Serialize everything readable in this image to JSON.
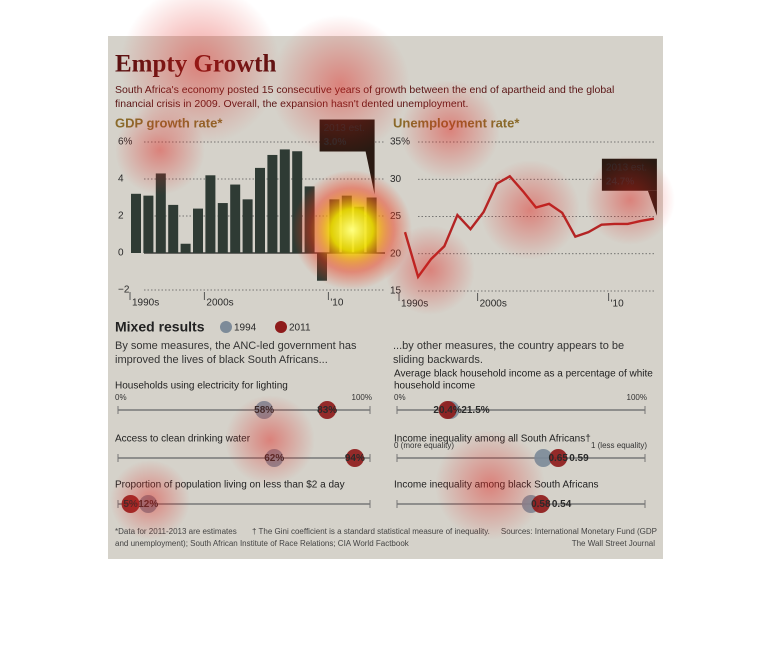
{
  "title": "Empty Growth",
  "subtitle": [
    "South Africa's economy posted 15 consecutive years of growth between the end of apartheid and the global",
    "financial crisis in 2009. Overall, the expansion hasn't dented unemployment."
  ],
  "mixed_results": {
    "title": "Mixed results",
    "legend": [
      {
        "name": "1994",
        "color": "#7d8b99"
      },
      {
        "name": "2011",
        "color": "#8e1b1b"
      }
    ],
    "left_intro": [
      "By some measures, the ANC-led government has",
      "improved the lives of black South Africans..."
    ],
    "right_intro": [
      "...by other measures, the country appears to be",
      "sliding backwards."
    ]
  },
  "chart_data": [
    {
      "type": "bar",
      "title": "GDP growth rate*",
      "color": "#2f3b34",
      "categories": [
        "1990s",
        null,
        null,
        null,
        null,
        null,
        "2000s",
        null,
        null,
        null,
        null,
        null,
        null,
        null,
        null,
        null,
        "'10",
        null,
        null,
        null
      ],
      "values": [
        3.2,
        3.1,
        4.3,
        2.6,
        0.5,
        2.4,
        4.2,
        2.7,
        3.7,
        2.9,
        4.6,
        5.3,
        5.6,
        5.5,
        3.6,
        -1.5,
        2.9,
        3.1,
        2.5,
        3.0
      ],
      "ylim": [
        -2,
        6
      ],
      "yticks": [
        {
          "value": -2,
          "label": "−2"
        },
        0,
        2,
        4,
        {
          "value": 6,
          "label": "6%"
        }
      ],
      "grid": true,
      "annotation": [
        "2013 est.",
        "3.0%"
      ]
    },
    {
      "type": "line",
      "title": "Unemployment rate*",
      "color": "#b32424",
      "categories": [
        "1990s",
        null,
        null,
        null,
        null,
        null,
        "2000s",
        null,
        null,
        null,
        null,
        null,
        null,
        null,
        null,
        null,
        "'10",
        null,
        null,
        null
      ],
      "values": [
        22.9,
        16.9,
        19.3,
        21.0,
        25.2,
        23.3,
        25.6,
        29.4,
        30.4,
        28.4,
        26.2,
        26.7,
        25.5,
        22.3,
        22.9,
        23.9,
        24.0,
        24.0,
        24.4,
        24.7
      ],
      "ylim": [
        15,
        35
      ],
      "yticks": [
        15,
        20,
        25,
        30,
        {
          "value": 35,
          "label": "35%"
        }
      ],
      "grid": true,
      "annotation": [
        "2013 est.",
        "24.7%"
      ]
    },
    {
      "type": "dot",
      "title": [
        "Households using electricity for lighting"
      ],
      "xlim": [
        0,
        100
      ],
      "xticks": [
        {
          "value": 0,
          "label": "0%"
        },
        {
          "value": 100,
          "label": "100%"
        }
      ],
      "values": [
        58,
        83
      ],
      "value_labels": [
        "58%",
        "83%"
      ]
    },
    {
      "type": "dot",
      "title": [
        "Access to clean drinking water"
      ],
      "xlim": [
        0,
        100
      ],
      "values": [
        62,
        94
      ],
      "value_labels": [
        "62%",
        "94%"
      ]
    },
    {
      "type": "dot",
      "title": [
        "Proportion of population living on less than $2 a day"
      ],
      "xlim": [
        0,
        100
      ],
      "values": [
        12,
        5
      ],
      "value_labels": [
        "12%",
        "5%"
      ]
    },
    {
      "type": "dot",
      "title": [
        "Average black household income as a percentage of white",
        "household income"
      ],
      "xlim": [
        0,
        100
      ],
      "xticks": [
        {
          "value": 0,
          "label": "0%"
        },
        {
          "value": 100,
          "label": "100%"
        }
      ],
      "values": [
        21.5,
        20.4
      ],
      "value_labels": [
        "21.5%",
        "20.4%"
      ]
    },
    {
      "type": "dot",
      "title": [
        "Income inequality among all South Africans†"
      ],
      "xlim": [
        0,
        1
      ],
      "xticks": [
        {
          "value": 0,
          "label": "0 (more equality)"
        },
        {
          "value": 1,
          "label": "1 (less equality)"
        }
      ],
      "values": [
        0.59,
        0.65
      ]
    },
    {
      "type": "dot",
      "title": [
        "Income inequality among black South Africans"
      ],
      "xlim": [
        0,
        1
      ],
      "values": [
        0.54,
        0.58
      ]
    }
  ],
  "footnotes": [
    "*Data for 2011-2013 are estimates",
    "† The Gini coefficient is a standard statistical measure of inequality."
  ],
  "sources": [
    "Sources: International Monetary Fund (GDP",
    "and unemployment); South African Institute of Race Relations; CIA World Factbook"
  ],
  "credit": "The Wall Street Journal"
}
